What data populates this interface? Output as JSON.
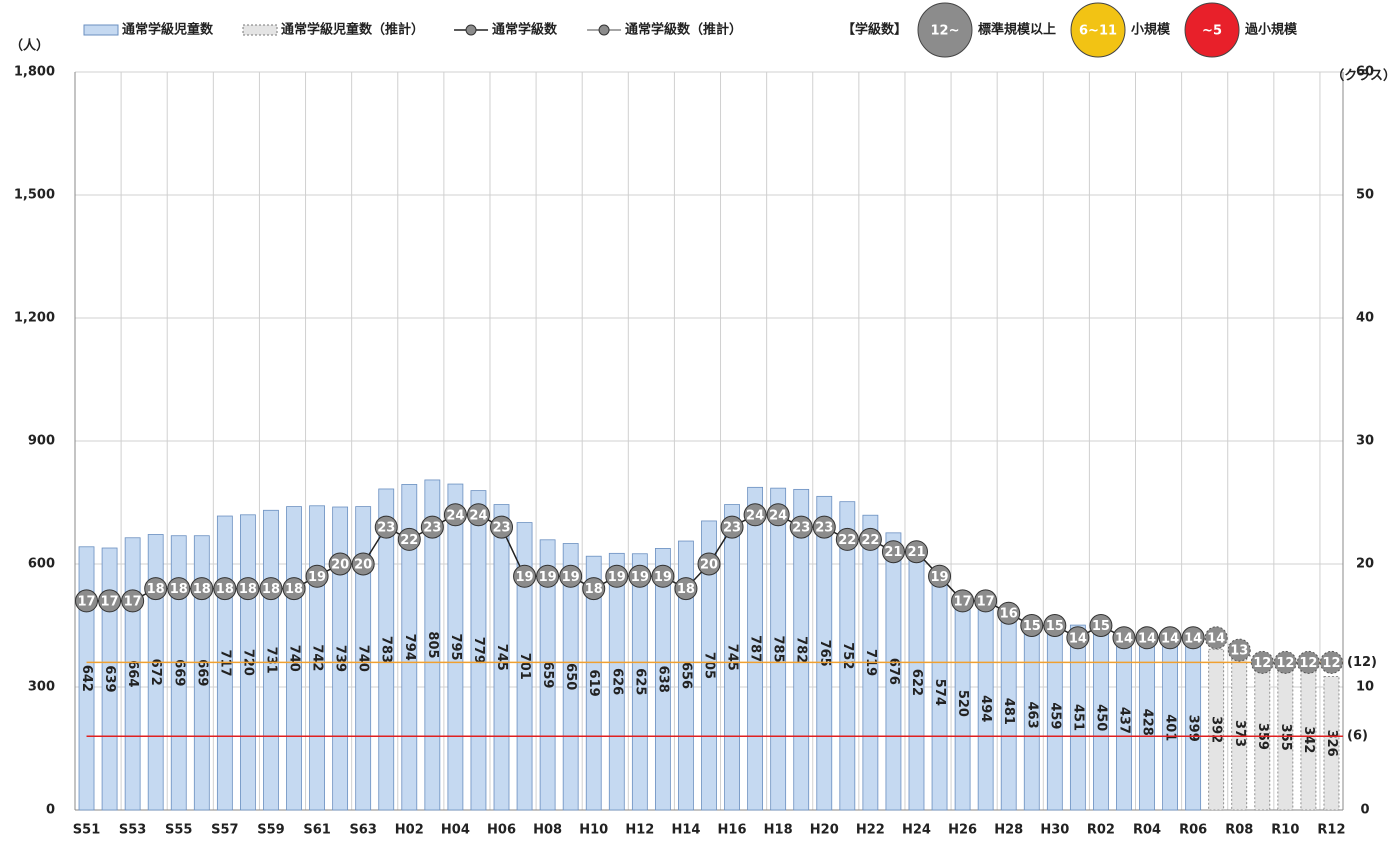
{
  "chart_data": {
    "type": "bar_line",
    "y_label": "（人）",
    "y2_label": "（クラス）",
    "categories": [
      "S51",
      null,
      "S53",
      null,
      "S55",
      null,
      "S57",
      null,
      "S59",
      null,
      "S61",
      null,
      "S63",
      null,
      "H02",
      null,
      "H04",
      null,
      "H06",
      null,
      "H08",
      null,
      "H10",
      null,
      "H12",
      null,
      "H14",
      null,
      "H16",
      null,
      "H18",
      null,
      "H20",
      null,
      "H22",
      null,
      "H24",
      null,
      "H26",
      null,
      "H28",
      null,
      "H30",
      null,
      "R02",
      null,
      "R04",
      null,
      "R06",
      null,
      "R08",
      null,
      "R10",
      null,
      "R12"
    ],
    "series": [
      {
        "name": "通常学級児童数",
        "kind": "bar",
        "color": "#c5d9f1",
        "values": [
          642,
          639,
          664,
          672,
          669,
          669,
          717,
          720,
          731,
          740,
          742,
          739,
          740,
          783,
          794,
          805,
          795,
          779,
          745,
          701,
          659,
          650,
          619,
          626,
          625,
          638,
          656,
          705,
          745,
          787,
          785,
          782,
          765,
          752,
          719,
          676,
          622,
          574,
          520,
          494,
          481,
          463,
          459,
          451,
          450,
          437,
          428,
          401,
          399,
          null,
          null,
          null,
          null,
          null,
          null
        ]
      },
      {
        "name": "通常学級児童数（推計）",
        "kind": "bar",
        "color": "#e4e4e4",
        "dashed": true,
        "values": [
          null,
          null,
          null,
          null,
          null,
          null,
          null,
          null,
          null,
          null,
          null,
          null,
          null,
          null,
          null,
          null,
          null,
          null,
          null,
          null,
          null,
          null,
          null,
          null,
          null,
          null,
          null,
          null,
          null,
          null,
          null,
          null,
          null,
          null,
          null,
          null,
          null,
          null,
          null,
          null,
          null,
          null,
          null,
          null,
          null,
          null,
          null,
          null,
          null,
          392,
          373,
          359,
          355,
          342,
          326
        ]
      },
      {
        "name": "通常学級数",
        "kind": "line",
        "axis": "y2",
        "color": "#222222",
        "values": [
          17,
          17,
          17,
          18,
          18,
          18,
          18,
          18,
          18,
          18,
          19,
          20,
          20,
          23,
          22,
          23,
          24,
          24,
          23,
          19,
          19,
          19,
          18,
          19,
          19,
          19,
          18,
          20,
          23,
          24,
          24,
          23,
          23,
          22,
          22,
          21,
          21,
          19,
          17,
          17,
          16,
          15,
          15,
          14,
          15,
          14,
          14,
          14,
          14,
          null,
          null,
          null,
          null,
          null,
          null
        ]
      },
      {
        "name": "通常学級数（推計）",
        "kind": "line",
        "axis": "y2",
        "color": "#888888",
        "dashed": true,
        "values": [
          null,
          null,
          null,
          null,
          null,
          null,
          null,
          null,
          null,
          null,
          null,
          null,
          null,
          null,
          null,
          null,
          null,
          null,
          null,
          null,
          null,
          null,
          null,
          null,
          null,
          null,
          null,
          null,
          null,
          null,
          null,
          null,
          null,
          null,
          null,
          null,
          null,
          null,
          null,
          null,
          null,
          null,
          null,
          null,
          null,
          null,
          null,
          null,
          null,
          14,
          13,
          12,
          12,
          12,
          12
        ]
      }
    ],
    "ylim": [
      0,
      1800
    ],
    "yticks": [
      0,
      300,
      600,
      900,
      {
        "value": 1200,
        "label": "1,200"
      },
      {
        "value": 1500,
        "label": "1,500"
      },
      {
        "value": 1800,
        "label": "1,800"
      }
    ],
    "y2lim": [
      0,
      60
    ],
    "y2ticks": [
      0,
      10,
      20,
      30,
      40,
      50,
      60
    ],
    "grid": true,
    "class_legend_title": "【学級数】",
    "class_size_legend": [
      {
        "range": "12~",
        "label": "標準規模以上",
        "color": "#8c8c8c"
      },
      {
        "range": "6~11",
        "label": "小規模",
        "color": "#f2c314"
      },
      {
        "range": "~5",
        "label": "過小規模",
        "color": "#e8202a"
      }
    ],
    "reference_lines": [
      {
        "value": 12,
        "label": "(12)",
        "color": "#f0a030"
      },
      {
        "value": 6,
        "label": "(6)",
        "color": "#e02020"
      }
    ]
  }
}
